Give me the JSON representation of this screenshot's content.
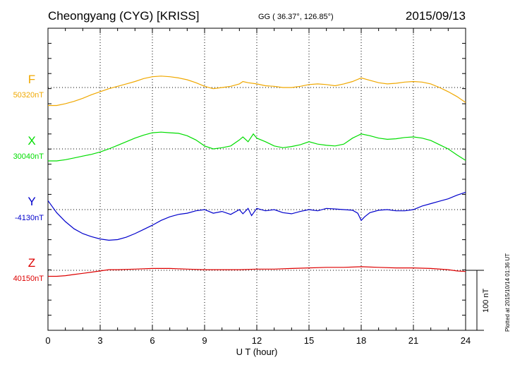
{
  "header": {
    "station": "Cheongyang (CYG)  [KRISS]",
    "coords": "GG ( 36.37°, 126.85°)",
    "date": "2015/09/13"
  },
  "footer": {
    "plotted": "Plotted at 2015/10/14 01:36 UT"
  },
  "colors": {
    "F": "#f0a800",
    "X": "#00dd00",
    "Y": "#0000cc",
    "Z": "#dd0000"
  },
  "chart_data": {
    "type": "line",
    "xlabel": "U T (hour)",
    "xlim": [
      0,
      24
    ],
    "xticks": [
      "0",
      "3",
      "6",
      "9",
      "12",
      "15",
      "18",
      "21",
      "24"
    ],
    "scale_bar": "100 nT",
    "grid": true,
    "series": [
      {
        "name": "F",
        "baseline_label": "50320nT",
        "baseline": 50320,
        "x": [
          0,
          0.5,
          1,
          1.5,
          2,
          2.5,
          3,
          3.5,
          4,
          4.5,
          5,
          5.5,
          6,
          6.5,
          7,
          7.5,
          8,
          8.5,
          9,
          9.5,
          10,
          10.5,
          11,
          11.2,
          11.5,
          12,
          12.5,
          13,
          13.5,
          14,
          14.5,
          15,
          15.5,
          16,
          16.5,
          17,
          17.5,
          18,
          18.5,
          19,
          19.5,
          20,
          20.5,
          21,
          21.5,
          22,
          22.5,
          23,
          23.5,
          24
        ],
        "y": [
          50290,
          50290,
          50293,
          50297,
          50302,
          50308,
          50313,
          50318,
          50322,
          50326,
          50330,
          50335,
          50338,
          50339,
          50338,
          50336,
          50333,
          50328,
          50322,
          50318,
          50320,
          50322,
          50326,
          50330,
          50328,
          50326,
          50323,
          50322,
          50320,
          50320,
          50322,
          50325,
          50326,
          50325,
          50323,
          50326,
          50330,
          50336,
          50332,
          50328,
          50326,
          50327,
          50329,
          50330,
          50329,
          50326,
          50320,
          50313,
          50305,
          50295
        ]
      },
      {
        "name": "X",
        "baseline_label": "30040nT",
        "baseline": 30040,
        "x": [
          0,
          0.5,
          1,
          1.5,
          2,
          2.5,
          3,
          3.5,
          4,
          4.5,
          5,
          5.5,
          6,
          6.5,
          7,
          7.5,
          8,
          8.5,
          9,
          9.5,
          10,
          10.5,
          11,
          11.2,
          11.5,
          11.8,
          12,
          12.5,
          13,
          13.5,
          14,
          14.5,
          15,
          15.5,
          16,
          16.5,
          17,
          17.5,
          18,
          18.5,
          19,
          19.5,
          20,
          20.5,
          21,
          21.5,
          22,
          22.5,
          23,
          23.5,
          24
        ],
        "y": [
          30020,
          30020,
          30022,
          30025,
          30028,
          30031,
          30035,
          30040,
          30046,
          30052,
          30058,
          30063,
          30067,
          30068,
          30067,
          30066,
          30062,
          30055,
          30045,
          30040,
          30042,
          30045,
          30055,
          30060,
          30052,
          30065,
          30058,
          30052,
          30045,
          30042,
          30044,
          30047,
          30052,
          30048,
          30046,
          30045,
          30048,
          30058,
          30065,
          30062,
          30058,
          30056,
          30057,
          30059,
          30060,
          30058,
          30054,
          30047,
          30040,
          30030,
          30021
        ]
      },
      {
        "name": "Y",
        "baseline_label": "-4130nT",
        "baseline": -4130,
        "x": [
          0,
          0.5,
          1,
          1.5,
          2,
          2.5,
          3,
          3.5,
          4,
          4.5,
          5,
          5.5,
          6,
          6.5,
          7,
          7.5,
          8,
          8.5,
          9,
          9.5,
          10,
          10.5,
          11,
          11.2,
          11.5,
          11.7,
          12,
          12.5,
          13,
          13.5,
          14,
          14.5,
          15,
          15.5,
          16,
          16.5,
          17,
          17.5,
          17.8,
          18,
          18.2,
          18.5,
          19,
          19.5,
          20,
          20.5,
          21,
          21.5,
          22,
          22.5,
          23,
          23.5,
          24
        ],
        "y": [
          -4115,
          -4135,
          -4150,
          -4162,
          -4170,
          -4175,
          -4179,
          -4181,
          -4180,
          -4176,
          -4170,
          -4163,
          -4156,
          -4148,
          -4142,
          -4138,
          -4136,
          -4132,
          -4130,
          -4136,
          -4133,
          -4138,
          -4130,
          -4137,
          -4128,
          -4140,
          -4128,
          -4132,
          -4130,
          -4135,
          -4137,
          -4133,
          -4130,
          -4132,
          -4128,
          -4129,
          -4130,
          -4131,
          -4136,
          -4148,
          -4142,
          -4135,
          -4131,
          -4130,
          -4132,
          -4132,
          -4130,
          -4124,
          -4120,
          -4116,
          -4112,
          -4106,
          -4101
        ]
      },
      {
        "name": "Z",
        "baseline_label": "40150nT",
        "baseline": 40150,
        "x": [
          0,
          0.5,
          1,
          1.5,
          2,
          2.5,
          3,
          3.5,
          4,
          5,
          6,
          7,
          8,
          9,
          10,
          11,
          12,
          13,
          14,
          15,
          16,
          17,
          18,
          19,
          20,
          21,
          22,
          23,
          23.5,
          24
        ],
        "y": [
          40140,
          40140,
          40141,
          40143,
          40145,
          40147,
          40149,
          40151,
          40151,
          40152,
          40153,
          40153,
          40152,
          40151,
          40151,
          40151,
          40152,
          40152,
          40153,
          40154,
          40155,
          40155,
          40156,
          40155,
          40154,
          40154,
          40153,
          40151,
          40149,
          40148
        ]
      }
    ]
  }
}
